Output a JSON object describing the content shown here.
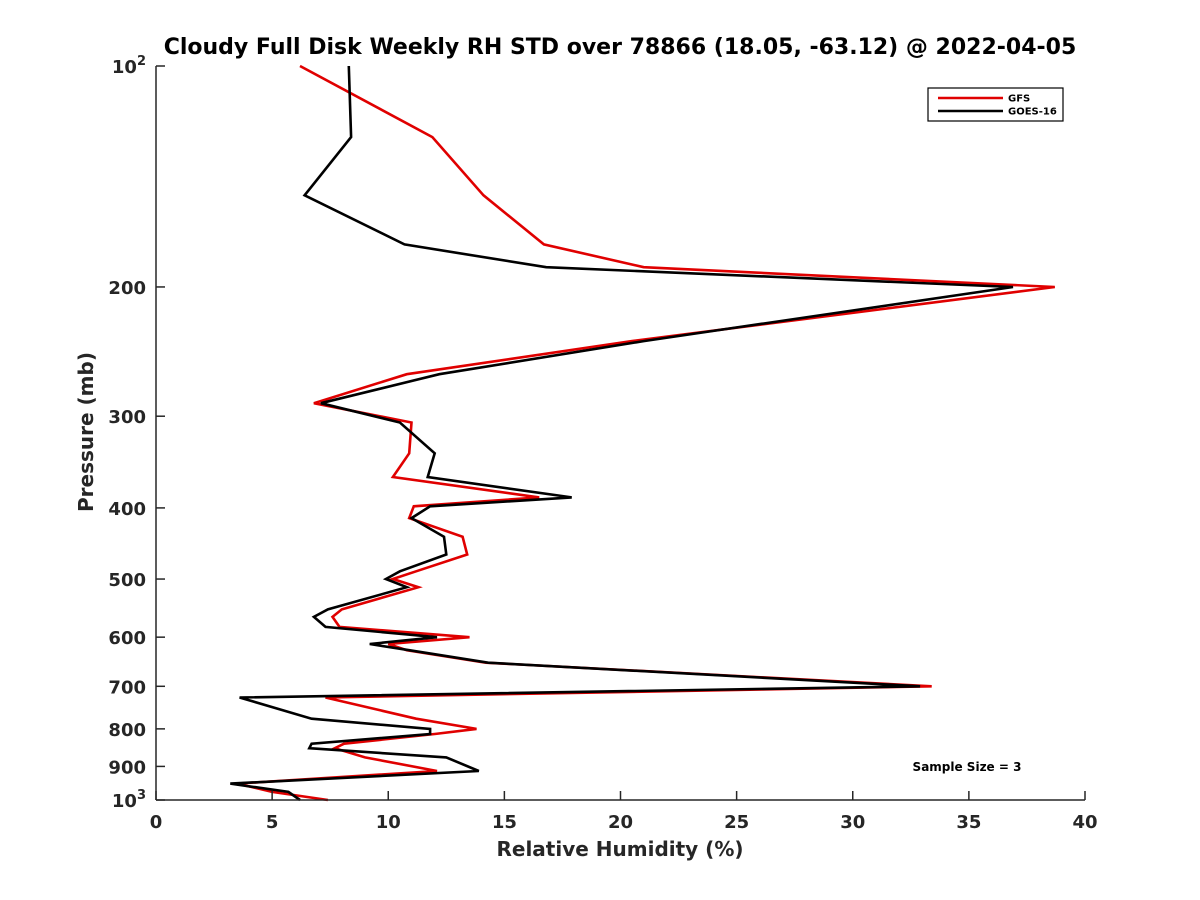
{
  "chart_data": {
    "type": "line",
    "title": "Cloudy Full Disk Weekly RH STD over 78866 (18.05, -63.12) @ 2022-04-05",
    "xlabel": "Relative Humidity (%)",
    "ylabel": "Pressure (mb)",
    "xlim": [
      0,
      40
    ],
    "ylim": [
      100,
      1000
    ],
    "yscale": "log",
    "y_reversed": true,
    "x_ticks": [
      0,
      5,
      10,
      15,
      20,
      25,
      30,
      35,
      40
    ],
    "x_tick_labels": [
      "0",
      "5",
      "10",
      "15",
      "20",
      "25",
      "30",
      "35",
      "40"
    ],
    "y_ticks": [
      100,
      200,
      300,
      400,
      500,
      600,
      700,
      800,
      900,
      1000
    ],
    "y_tick_labels": [
      {
        "base": "10",
        "exp": "2"
      },
      {
        "base": "200"
      },
      {
        "base": "300"
      },
      {
        "base": "400"
      },
      {
        "base": "500"
      },
      {
        "base": "600"
      },
      {
        "base": "700"
      },
      {
        "base": "800"
      },
      {
        "base": "900"
      },
      {
        "base": "10",
        "exp": "3"
      }
    ],
    "grid": false,
    "legend_position": "top-right",
    "annotation": "Sample Size = 3",
    "series": [
      {
        "name": "GFS",
        "color": "#e00000",
        "points": [
          {
            "x": 6.2,
            "p": 100
          },
          {
            "x": 11.9,
            "p": 125
          },
          {
            "x": 14.1,
            "p": 150
          },
          {
            "x": 16.7,
            "p": 175
          },
          {
            "x": 21.0,
            "p": 188
          },
          {
            "x": 38.7,
            "p": 200
          },
          {
            "x": 20.5,
            "p": 237
          },
          {
            "x": 10.8,
            "p": 263
          },
          {
            "x": 6.8,
            "p": 288
          },
          {
            "x": 11.0,
            "p": 306
          },
          {
            "x": 10.9,
            "p": 337
          },
          {
            "x": 10.2,
            "p": 363
          },
          {
            "x": 16.5,
            "p": 387
          },
          {
            "x": 11.1,
            "p": 398
          },
          {
            "x": 10.9,
            "p": 413
          },
          {
            "x": 13.2,
            "p": 438
          },
          {
            "x": 13.4,
            "p": 463
          },
          {
            "x": 11.2,
            "p": 488
          },
          {
            "x": 10.2,
            "p": 500
          },
          {
            "x": 11.3,
            "p": 513
          },
          {
            "x": 8.0,
            "p": 550
          },
          {
            "x": 7.6,
            "p": 563
          },
          {
            "x": 7.9,
            "p": 581
          },
          {
            "x": 13.5,
            "p": 600
          },
          {
            "x": 10.0,
            "p": 613
          },
          {
            "x": 10.8,
            "p": 625
          },
          {
            "x": 14.2,
            "p": 650
          },
          {
            "x": 33.4,
            "p": 700
          },
          {
            "x": 7.3,
            "p": 725
          },
          {
            "x": 11.2,
            "p": 775
          },
          {
            "x": 13.8,
            "p": 800
          },
          {
            "x": 12.0,
            "p": 813
          },
          {
            "x": 8.1,
            "p": 838
          },
          {
            "x": 7.7,
            "p": 850
          },
          {
            "x": 9.0,
            "p": 875
          },
          {
            "x": 12.1,
            "p": 913
          },
          {
            "x": 3.5,
            "p": 950
          },
          {
            "x": 5.0,
            "p": 975
          },
          {
            "x": 7.4,
            "p": 1000
          }
        ]
      },
      {
        "name": "GOES-16",
        "color": "#000000",
        "points": [
          {
            "x": 8.3,
            "p": 100
          },
          {
            "x": 8.4,
            "p": 125
          },
          {
            "x": 6.4,
            "p": 150
          },
          {
            "x": 10.7,
            "p": 175
          },
          {
            "x": 16.8,
            "p": 188
          },
          {
            "x": 36.9,
            "p": 200
          },
          {
            "x": 21.0,
            "p": 237
          },
          {
            "x": 12.2,
            "p": 263
          },
          {
            "x": 7.1,
            "p": 288
          },
          {
            "x": 10.5,
            "p": 306
          },
          {
            "x": 12.0,
            "p": 337
          },
          {
            "x": 11.7,
            "p": 363
          },
          {
            "x": 17.9,
            "p": 387
          },
          {
            "x": 11.8,
            "p": 398
          },
          {
            "x": 11.0,
            "p": 413
          },
          {
            "x": 12.4,
            "p": 438
          },
          {
            "x": 12.5,
            "p": 463
          },
          {
            "x": 10.5,
            "p": 488
          },
          {
            "x": 9.9,
            "p": 500
          },
          {
            "x": 10.8,
            "p": 513
          },
          {
            "x": 7.4,
            "p": 550
          },
          {
            "x": 6.8,
            "p": 563
          },
          {
            "x": 7.3,
            "p": 581
          },
          {
            "x": 12.1,
            "p": 600
          },
          {
            "x": 9.2,
            "p": 613
          },
          {
            "x": 10.9,
            "p": 625
          },
          {
            "x": 14.3,
            "p": 650
          },
          {
            "x": 32.9,
            "p": 700
          },
          {
            "x": 3.6,
            "p": 725
          },
          {
            "x": 6.7,
            "p": 775
          },
          {
            "x": 11.8,
            "p": 800
          },
          {
            "x": 11.8,
            "p": 813
          },
          {
            "x": 6.7,
            "p": 838
          },
          {
            "x": 6.6,
            "p": 850
          },
          {
            "x": 12.5,
            "p": 875
          },
          {
            "x": 13.9,
            "p": 913
          },
          {
            "x": 3.2,
            "p": 950
          },
          {
            "x": 5.7,
            "p": 975
          },
          {
            "x": 6.2,
            "p": 1000
          }
        ]
      }
    ]
  }
}
